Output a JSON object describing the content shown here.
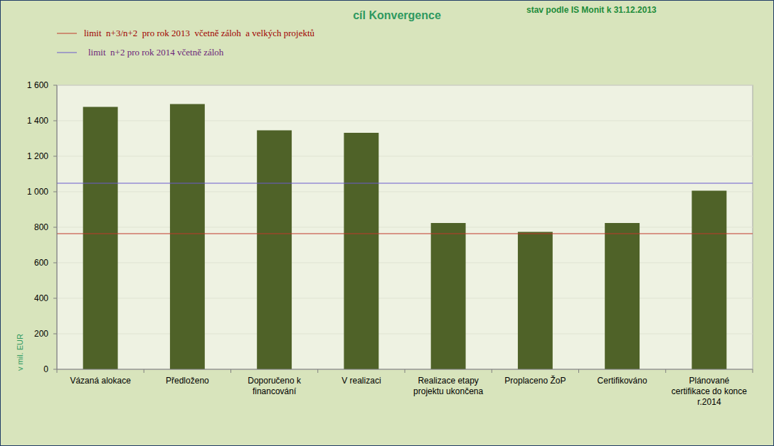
{
  "chart_data": {
    "type": "bar",
    "title": "cíl Konvergence",
    "subtitle": "stav podle IS Monit k 31.12.2013",
    "y_label": "v mil. EUR",
    "categories": [
      "Vázaná alokace",
      "Předloženo",
      "Doporučeno k\nfinancování",
      "V realizaci",
      "Realizace etapy\nprojektu ukončena",
      "Proplaceno ŽoP",
      "Certifikováno",
      "Plánované\ncertifikace do konce\nr.2014"
    ],
    "values": [
      1478,
      1494,
      1346,
      1332,
      824,
      774,
      824,
      1006
    ],
    "color": "#4f6228",
    "lines": [
      {
        "name": "limit  n+3/n+2  pro rok 2013  včetně záloh  a velkých projektů",
        "color": "#c0392b",
        "value": 764
      },
      {
        "name": "limit  n+2 pro rok 2014 včetně záloh",
        "color": "#6a5acd",
        "value": 1048
      }
    ],
    "ylim": [
      0,
      1600
    ],
    "yticks": [
      0,
      200,
      400,
      600,
      800,
      1000,
      1200,
      1400,
      1600
    ],
    "ytick_labels": [
      "0",
      "200",
      "400",
      "600",
      "800",
      "1 000",
      "1 200",
      "1 400",
      "1 600"
    ],
    "grid": true
  }
}
